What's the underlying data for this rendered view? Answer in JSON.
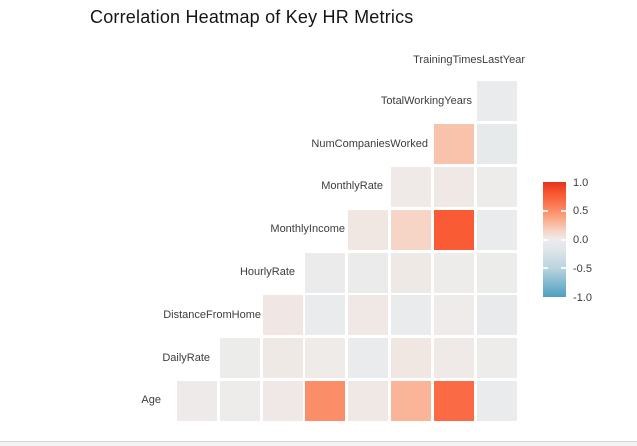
{
  "chart_data": {
    "type": "heatmap",
    "title": "Correlation Heatmap of Key HR Metrics",
    "subtitle": "",
    "layout": "lower-triangle-staggered",
    "grid": false,
    "variables": [
      "Age",
      "DailyRate",
      "DistanceFromHome",
      "HourlyRate",
      "MonthlyIncome",
      "MonthlyRate",
      "NumCompaniesWorked",
      "TotalWorkingYears",
      "TrainingTimesLastYear"
    ],
    "columns": [
      "DailyRate",
      "DistanceFromHome",
      "HourlyRate",
      "MonthlyIncome",
      "MonthlyRate",
      "NumCompaniesWorked",
      "TotalWorkingYears",
      "TrainingTimesLastYear"
    ],
    "rows": [
      {
        "label": "TrainingTimesLastYear",
        "values": [
          null,
          null,
          null,
          null,
          null,
          null,
          null,
          null
        ]
      },
      {
        "label": "TotalWorkingYears",
        "values": [
          null,
          null,
          null,
          null,
          null,
          null,
          null,
          -0.036
        ]
      },
      {
        "label": "NumCompaniesWorked",
        "values": [
          null,
          null,
          null,
          null,
          null,
          null,
          0.238,
          -0.066
        ]
      },
      {
        "label": "MonthlyRate",
        "values": [
          null,
          null,
          null,
          null,
          null,
          0.018,
          0.026,
          0.001
        ]
      },
      {
        "label": "MonthlyIncome",
        "values": [
          null,
          null,
          null,
          null,
          0.035,
          0.15,
          0.773,
          -0.022
        ]
      },
      {
        "label": "HourlyRate",
        "values": [
          null,
          null,
          null,
          -0.016,
          -0.015,
          0.022,
          -0.002,
          -0.009
        ]
      },
      {
        "label": "DistanceFromHome",
        "values": [
          null,
          null,
          0.031,
          -0.017,
          0.027,
          -0.029,
          0.005,
          -0.037
        ]
      },
      {
        "label": "DailyRate",
        "values": [
          null,
          -0.005,
          0.023,
          0.008,
          -0.032,
          0.038,
          0.015,
          0.002
        ]
      },
      {
        "label": "Age",
        "values": [
          0.011,
          -0.002,
          0.024,
          0.498,
          0.028,
          0.3,
          0.68,
          -0.02
        ]
      }
    ],
    "legend": {
      "position": "right",
      "min": -1.0,
      "max": 1.0,
      "tick_labels": [
        "1.0",
        "0.5",
        "0.0",
        "-0.5",
        "-1.0"
      ],
      "tick_values": [
        1.0,
        0.5,
        0.0,
        -0.5,
        -1.0
      ]
    },
    "color_scale": {
      "high_color": "#E4331F",
      "mid_color": "#EDECEB",
      "low_color": "#4E9FC0",
      "stops": [
        {
          "v": -1.0,
          "c": "#4E9FC0"
        },
        {
          "v": -0.5,
          "c": "#BAD4DE"
        },
        {
          "v": -0.15,
          "c": "#E2E7EA"
        },
        {
          "v": -0.02,
          "c": "#EAEBEC"
        },
        {
          "v": 0.0,
          "c": "#EDECEB"
        },
        {
          "v": 0.02,
          "c": "#EFE9E7"
        },
        {
          "v": 0.15,
          "c": "#F6D4C6"
        },
        {
          "v": 0.3,
          "c": "#FAB598"
        },
        {
          "v": 0.5,
          "c": "#FB8D68"
        },
        {
          "v": 0.7,
          "c": "#FA6640"
        },
        {
          "v": 0.8,
          "c": "#F8572F"
        },
        {
          "v": 1.0,
          "c": "#E4331F"
        }
      ]
    }
  }
}
